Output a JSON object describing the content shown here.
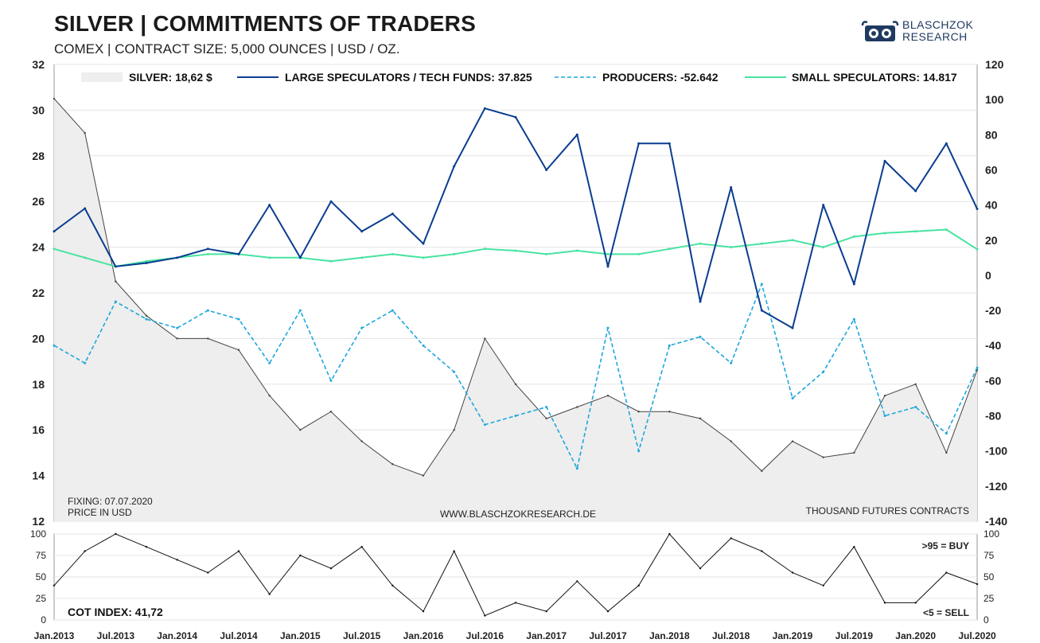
{
  "header": {
    "title": "SILVER | COMMITMENTS OF TRADERS",
    "subtitle": "COMEX | CONTRACT SIZE: 5,000 OUNCES | USD / OZ.",
    "logo_line1": "BLASCHZOK",
    "logo_line2": "RESEARCH"
  },
  "colors": {
    "silver_fill": "#eeeeee",
    "silver_line": "#444444",
    "large_specs": "#0a3d91",
    "producers": "#1ea7dc",
    "small_specs": "#48e3a0",
    "cot_buy": "#0a3d91",
    "cot_sell": "#1ea7dc"
  },
  "legend": {
    "silver": "SILVER: 18,62 $",
    "large_specs": "LARGE SPECULATORS / TECH FUNDS: 37.825",
    "producers": "PRODUCERS: -52.642",
    "small_specs": "SMALL SPECULATORS: 14.817"
  },
  "notes": {
    "fixing": "FIXING: 07.07.2020",
    "price_unit": "PRICE IN USD",
    "watermark": "WWW.BLASCHZOKRESEARCH.DE",
    "contracts_unit": "THOUSAND FUTURES CONTRACTS",
    "cot_index": "COT INDEX: 41,72",
    "buy_signal": ">95 = BUY",
    "sell_signal": "<5 = SELL"
  },
  "chart_data": [
    {
      "type": "line",
      "x_ticks": [
        "Jan.2013",
        "Jul.2013",
        "Jan.2014",
        "Jul.2014",
        "Jan.2015",
        "Jul.2015",
        "Jan.2016",
        "Jul.2016",
        "Jan.2017",
        "Jul.2017",
        "Jan.2018",
        "Jul.2018",
        "Jan.2019",
        "Jul.2019",
        "Jan.2020",
        "Jul.2020"
      ],
      "x": [
        2013.0,
        2013.25,
        2013.5,
        2013.75,
        2014.0,
        2014.25,
        2014.5,
        2014.75,
        2015.0,
        2015.25,
        2015.5,
        2015.75,
        2016.0,
        2016.25,
        2016.5,
        2016.75,
        2017.0,
        2017.25,
        2017.5,
        2017.75,
        2018.0,
        2018.25,
        2018.5,
        2018.75,
        2019.0,
        2019.25,
        2019.5,
        2019.75,
        2020.0,
        2020.25,
        2020.5
      ],
      "y_left_ticks": [
        12,
        14,
        16,
        18,
        20,
        22,
        24,
        26,
        28,
        30,
        32
      ],
      "y_left_range": [
        12,
        32
      ],
      "y_right_ticks": [
        -140,
        -120,
        -100,
        -80,
        -60,
        -40,
        -20,
        0,
        20,
        40,
        60,
        80,
        100,
        120
      ],
      "y_right_range": [
        -140,
        120
      ],
      "series": [
        {
          "name": "SILVER",
          "axis": "left",
          "style": "area",
          "values": [
            30.5,
            29.0,
            22.5,
            21.0,
            20.0,
            20.0,
            19.5,
            17.5,
            16.0,
            16.8,
            15.5,
            14.5,
            14.0,
            16.0,
            20.0,
            18.0,
            16.5,
            17.0,
            17.5,
            16.8,
            16.8,
            16.5,
            15.5,
            14.2,
            15.5,
            14.8,
            15.0,
            17.5,
            18.0,
            15.0,
            18.62
          ]
        },
        {
          "name": "LARGE SPECULATORS / TECH FUNDS",
          "axis": "right",
          "style": "solid",
          "values": [
            25,
            38,
            5,
            7,
            10,
            15,
            12,
            40,
            10,
            42,
            25,
            35,
            18,
            62,
            95,
            90,
            60,
            80,
            5,
            75,
            75,
            -15,
            50,
            -20,
            -30,
            40,
            -5,
            65,
            48,
            75,
            37.825
          ]
        },
        {
          "name": "PRODUCERS",
          "axis": "right",
          "style": "dashed",
          "values": [
            -40,
            -50,
            -15,
            -25,
            -30,
            -20,
            -25,
            -50,
            -20,
            -60,
            -30,
            -20,
            -40,
            -55,
            -85,
            -80,
            -75,
            -110,
            -30,
            -100,
            -40,
            -35,
            -50,
            -5,
            -70,
            -55,
            -25,
            -80,
            -75,
            -90,
            -52.642
          ]
        },
        {
          "name": "SMALL SPECULATORS",
          "axis": "right",
          "style": "solid",
          "values": [
            15,
            10,
            5,
            8,
            10,
            12,
            12,
            10,
            10,
            8,
            10,
            12,
            10,
            12,
            15,
            14,
            12,
            14,
            12,
            12,
            15,
            18,
            16,
            18,
            20,
            16,
            22,
            24,
            25,
            26,
            14.817
          ]
        }
      ]
    },
    {
      "type": "line",
      "y_ticks": [
        0,
        25,
        50,
        75,
        100
      ],
      "y_range": [
        0,
        100
      ],
      "series": [
        {
          "name": "COT INDEX",
          "values": [
            40,
            80,
            100,
            85,
            70,
            55,
            80,
            30,
            75,
            60,
            85,
            40,
            10,
            80,
            5,
            20,
            10,
            45,
            10,
            40,
            100,
            60,
            95,
            80,
            55,
            40,
            85,
            20,
            20,
            55,
            41.72
          ]
        }
      ]
    }
  ]
}
